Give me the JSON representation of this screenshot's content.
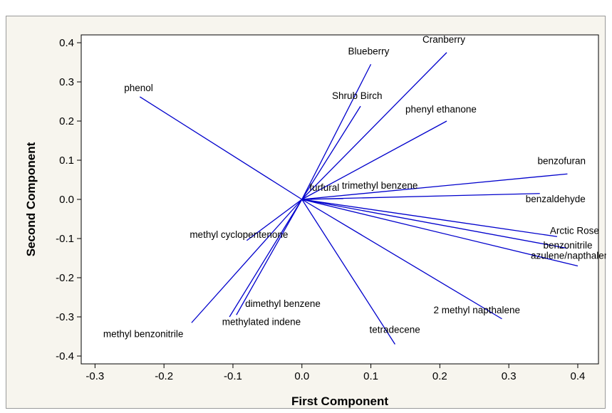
{
  "chart_data": {
    "type": "line",
    "xlabel": "First Component",
    "ylabel": "Second Component",
    "xlim": [
      -0.32,
      0.43
    ],
    "ylim": [
      -0.42,
      0.42
    ],
    "x_ticks": [
      -0.3,
      -0.2,
      -0.1,
      0.0,
      0.1,
      0.2,
      0.3,
      0.4
    ],
    "y_ticks": [
      0.4,
      0.3,
      0.2,
      0.1,
      0.0,
      -0.1,
      -0.2,
      -0.3,
      -0.4
    ],
    "x_tick_labels": [
      "-0.3",
      "-0.2",
      "-0.1",
      "0.0",
      "0.1",
      "0.2",
      "0.3",
      "0.4"
    ],
    "y_tick_labels": [
      "0.4",
      "0.3",
      "0.2",
      "0.1",
      "0.0",
      "-0.1",
      "-0.2",
      "-0.3",
      "-0.4"
    ],
    "grid": false,
    "line_color": "#0000cc",
    "vectors": [
      {
        "label": "phenol",
        "x": -0.235,
        "y": 0.262
      },
      {
        "label": "Blueberry",
        "x": 0.1,
        "y": 0.345
      },
      {
        "label": "Cranberry",
        "x": 0.21,
        "y": 0.375
      },
      {
        "label": "Shrub Birch",
        "x": 0.085,
        "y": 0.238
      },
      {
        "label": "phenyl ethanone",
        "x": 0.21,
        "y": 0.2
      },
      {
        "label": "benzofuran",
        "x": 0.385,
        "y": 0.065
      },
      {
        "label": "furfural",
        "x": 0.015,
        "y": 0.0
      },
      {
        "label": "trimethyl benzene",
        "x": 0.06,
        "y": 0.002
      },
      {
        "label": "benzaldehyde",
        "x": 0.345,
        "y": 0.015
      },
      {
        "label": "Arctic Rose",
        "x": 0.37,
        "y": -0.095
      },
      {
        "label": "benzonitrile",
        "x": 0.385,
        "y": -0.125
      },
      {
        "label": "azulene/napthalene",
        "x": 0.4,
        "y": -0.17
      },
      {
        "label": "methyl cyclopentenone",
        "x": -0.08,
        "y": -0.105
      },
      {
        "label": "2 methyl napthalene",
        "x": 0.29,
        "y": -0.305
      },
      {
        "label": "dimethyl benzene",
        "x": -0.105,
        "y": -0.3
      },
      {
        "label": "methylated indene",
        "x": -0.095,
        "y": -0.295
      },
      {
        "label": "tetradecene",
        "x": 0.135,
        "y": -0.37
      },
      {
        "label": "methyl benzonitrile",
        "x": -0.16,
        "y": -0.315
      }
    ]
  }
}
